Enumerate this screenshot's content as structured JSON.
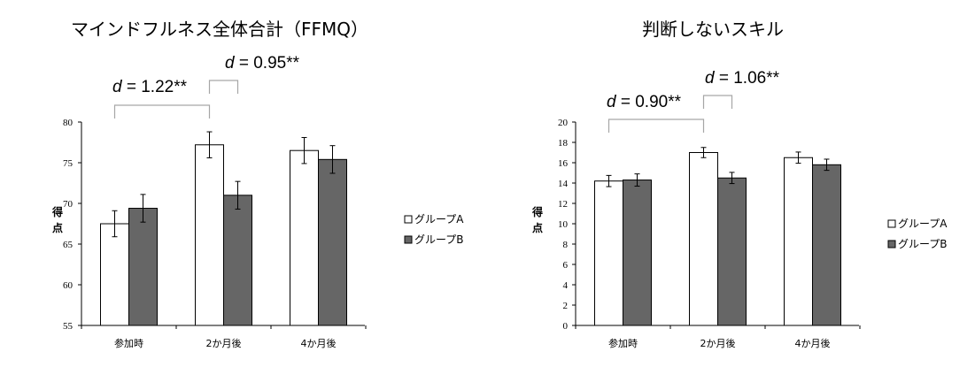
{
  "chart_data": [
    {
      "type": "bar",
      "title": "マインドフルネス全体合計（FFMQ）",
      "ylabel_chars": [
        "得",
        "点"
      ],
      "categories": [
        "参加時",
        "2か月後",
        "4か月後"
      ],
      "ylim": [
        55,
        80
      ],
      "yticks": [
        55,
        60,
        65,
        70,
        75,
        80
      ],
      "series": [
        {
          "name": "グループA",
          "color": "#ffffff",
          "values": [
            67.5,
            77.2,
            76.5
          ],
          "errors": [
            1.6,
            1.6,
            1.6
          ]
        },
        {
          "name": "グループB",
          "color": "#666666",
          "values": [
            69.4,
            71.0,
            75.4
          ],
          "errors": [
            1.7,
            1.7,
            1.7
          ]
        }
      ],
      "annotations": [
        {
          "d_symbol": "d",
          "text": " = 1.22**",
          "from": [
            0,
            0
          ],
          "to": [
            1,
            0
          ]
        },
        {
          "d_symbol": "d",
          "text": " = 0.95**",
          "from": [
            1,
            0
          ],
          "to": [
            1,
            1
          ]
        }
      ],
      "legend_placement": "right"
    },
    {
      "type": "bar",
      "title": "判断しないスキル",
      "ylabel_chars": [
        "得",
        "点"
      ],
      "categories": [
        "参加時",
        "2か月後",
        "4か月後"
      ],
      "ylim": [
        0,
        20
      ],
      "yticks": [
        0,
        2,
        4,
        6,
        8,
        10,
        12,
        14,
        16,
        18,
        20
      ],
      "series": [
        {
          "name": "グループA",
          "color": "#ffffff",
          "values": [
            14.2,
            17.0,
            16.5
          ],
          "errors": [
            0.55,
            0.5,
            0.55
          ]
        },
        {
          "name": "グループB",
          "color": "#666666",
          "values": [
            14.3,
            14.5,
            15.8
          ],
          "errors": [
            0.6,
            0.55,
            0.55
          ]
        }
      ],
      "annotations": [
        {
          "d_symbol": "d",
          "text": " = 0.90**",
          "from": [
            0,
            0
          ],
          "to": [
            1,
            0
          ]
        },
        {
          "d_symbol": "d",
          "text": " = 1.06**",
          "from": [
            1,
            0
          ],
          "to": [
            1,
            1
          ]
        }
      ],
      "legend_placement": "right"
    }
  ]
}
